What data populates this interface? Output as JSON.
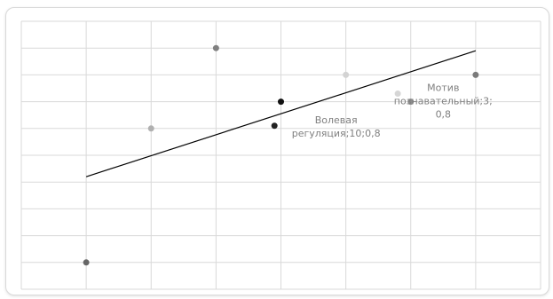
{
  "chart_data": {
    "type": "scatter",
    "title": "",
    "xlabel": "",
    "ylabel": "",
    "grid": true,
    "xlim": [
      0,
      8
    ],
    "ylim": [
      0,
      10
    ],
    "x_gridlines": 8,
    "y_gridlines": 10,
    "series": [
      {
        "color": "#666666",
        "points": [
          {
            "x": 1,
            "y": 1
          }
        ]
      },
      {
        "color": "#b0b0b0",
        "points": [
          {
            "x": 2,
            "y": 6
          }
        ]
      },
      {
        "color": "#808080",
        "points": [
          {
            "x": 3,
            "y": 9
          }
        ]
      },
      {
        "color": "#111111",
        "points": [
          {
            "x": 4,
            "y": 7
          }
        ]
      },
      {
        "color": "#222222",
        "points": [
          {
            "x": 3.9,
            "y": 6.1
          }
        ]
      },
      {
        "color": "#d3d3d3",
        "points": [
          {
            "x": 5,
            "y": 8
          }
        ]
      },
      {
        "color": "#d6d6d6",
        "points": [
          {
            "x": 5.8,
            "y": 7.3
          }
        ]
      },
      {
        "color": "#8c8c8c",
        "points": [
          {
            "x": 6,
            "y": 7
          }
        ]
      },
      {
        "color": "#7a7a7a",
        "points": [
          {
            "x": 7,
            "y": 8
          }
        ]
      }
    ],
    "trendline": {
      "color": "#000000",
      "from": {
        "x": 1,
        "y": 4.2
      },
      "to": {
        "x": 7,
        "y": 8.9
      }
    },
    "annotations": [
      {
        "lines": [
          "Волевая",
          "регуляция;10;0,8"
        ],
        "anchor": {
          "x": 4.85,
          "y": 6.2
        }
      },
      {
        "lines": [
          "Мотив",
          "познавательный;3;",
          "0,8"
        ],
        "anchor": {
          "x": 6.5,
          "y": 7.4
        }
      }
    ]
  }
}
